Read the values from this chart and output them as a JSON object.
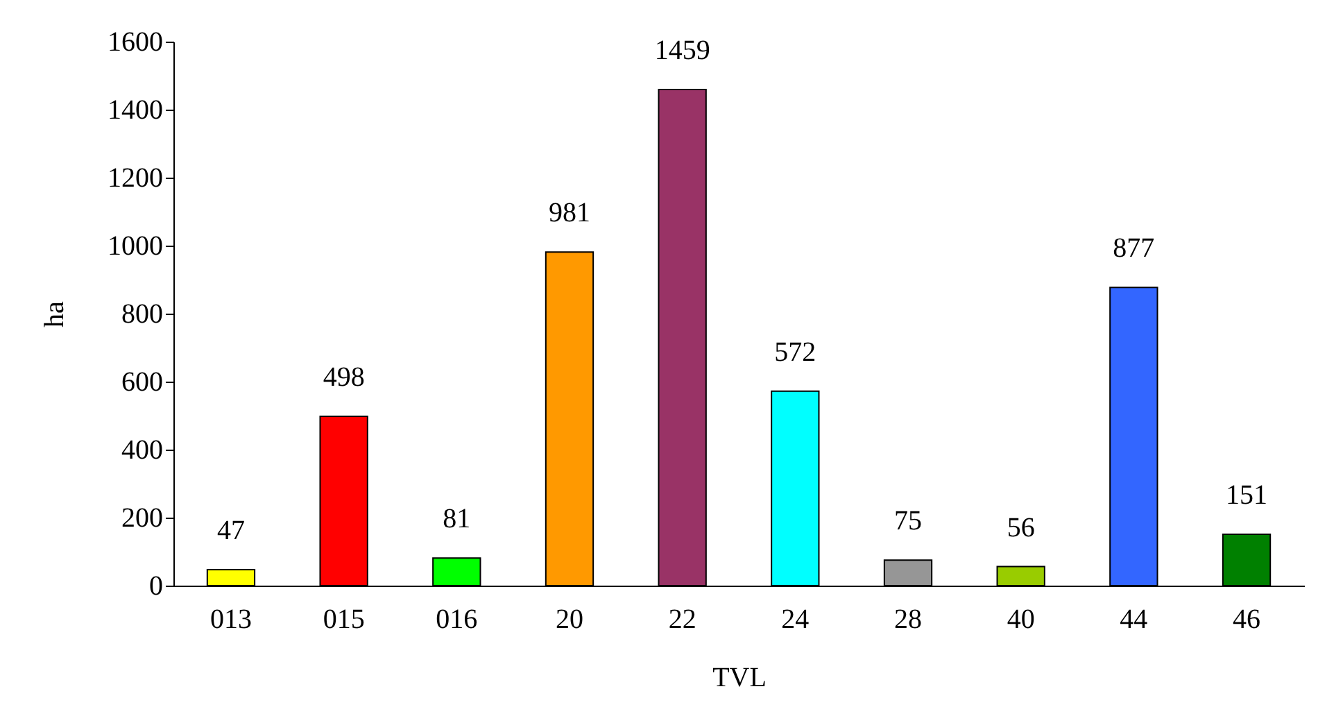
{
  "chart_data": {
    "type": "bar",
    "xlabel": "TVL",
    "ylabel": "ha",
    "categories": [
      "013",
      "015",
      "016",
      "20",
      "22",
      "24",
      "28",
      "40",
      "44",
      "46"
    ],
    "values": [
      47,
      498,
      81,
      981,
      1459,
      572,
      75,
      56,
      877,
      151
    ],
    "colors": [
      "#ffff00",
      "#ff0000",
      "#00ff00",
      "#ff9900",
      "#993366",
      "#00ffff",
      "#969696",
      "#99cc00",
      "#3366ff",
      "#008000"
    ],
    "ylim": [
      0,
      1600
    ],
    "yticks": [
      0,
      200,
      400,
      600,
      800,
      1000,
      1200,
      1400,
      1600
    ],
    "data_labels": true,
    "grid": false
  }
}
